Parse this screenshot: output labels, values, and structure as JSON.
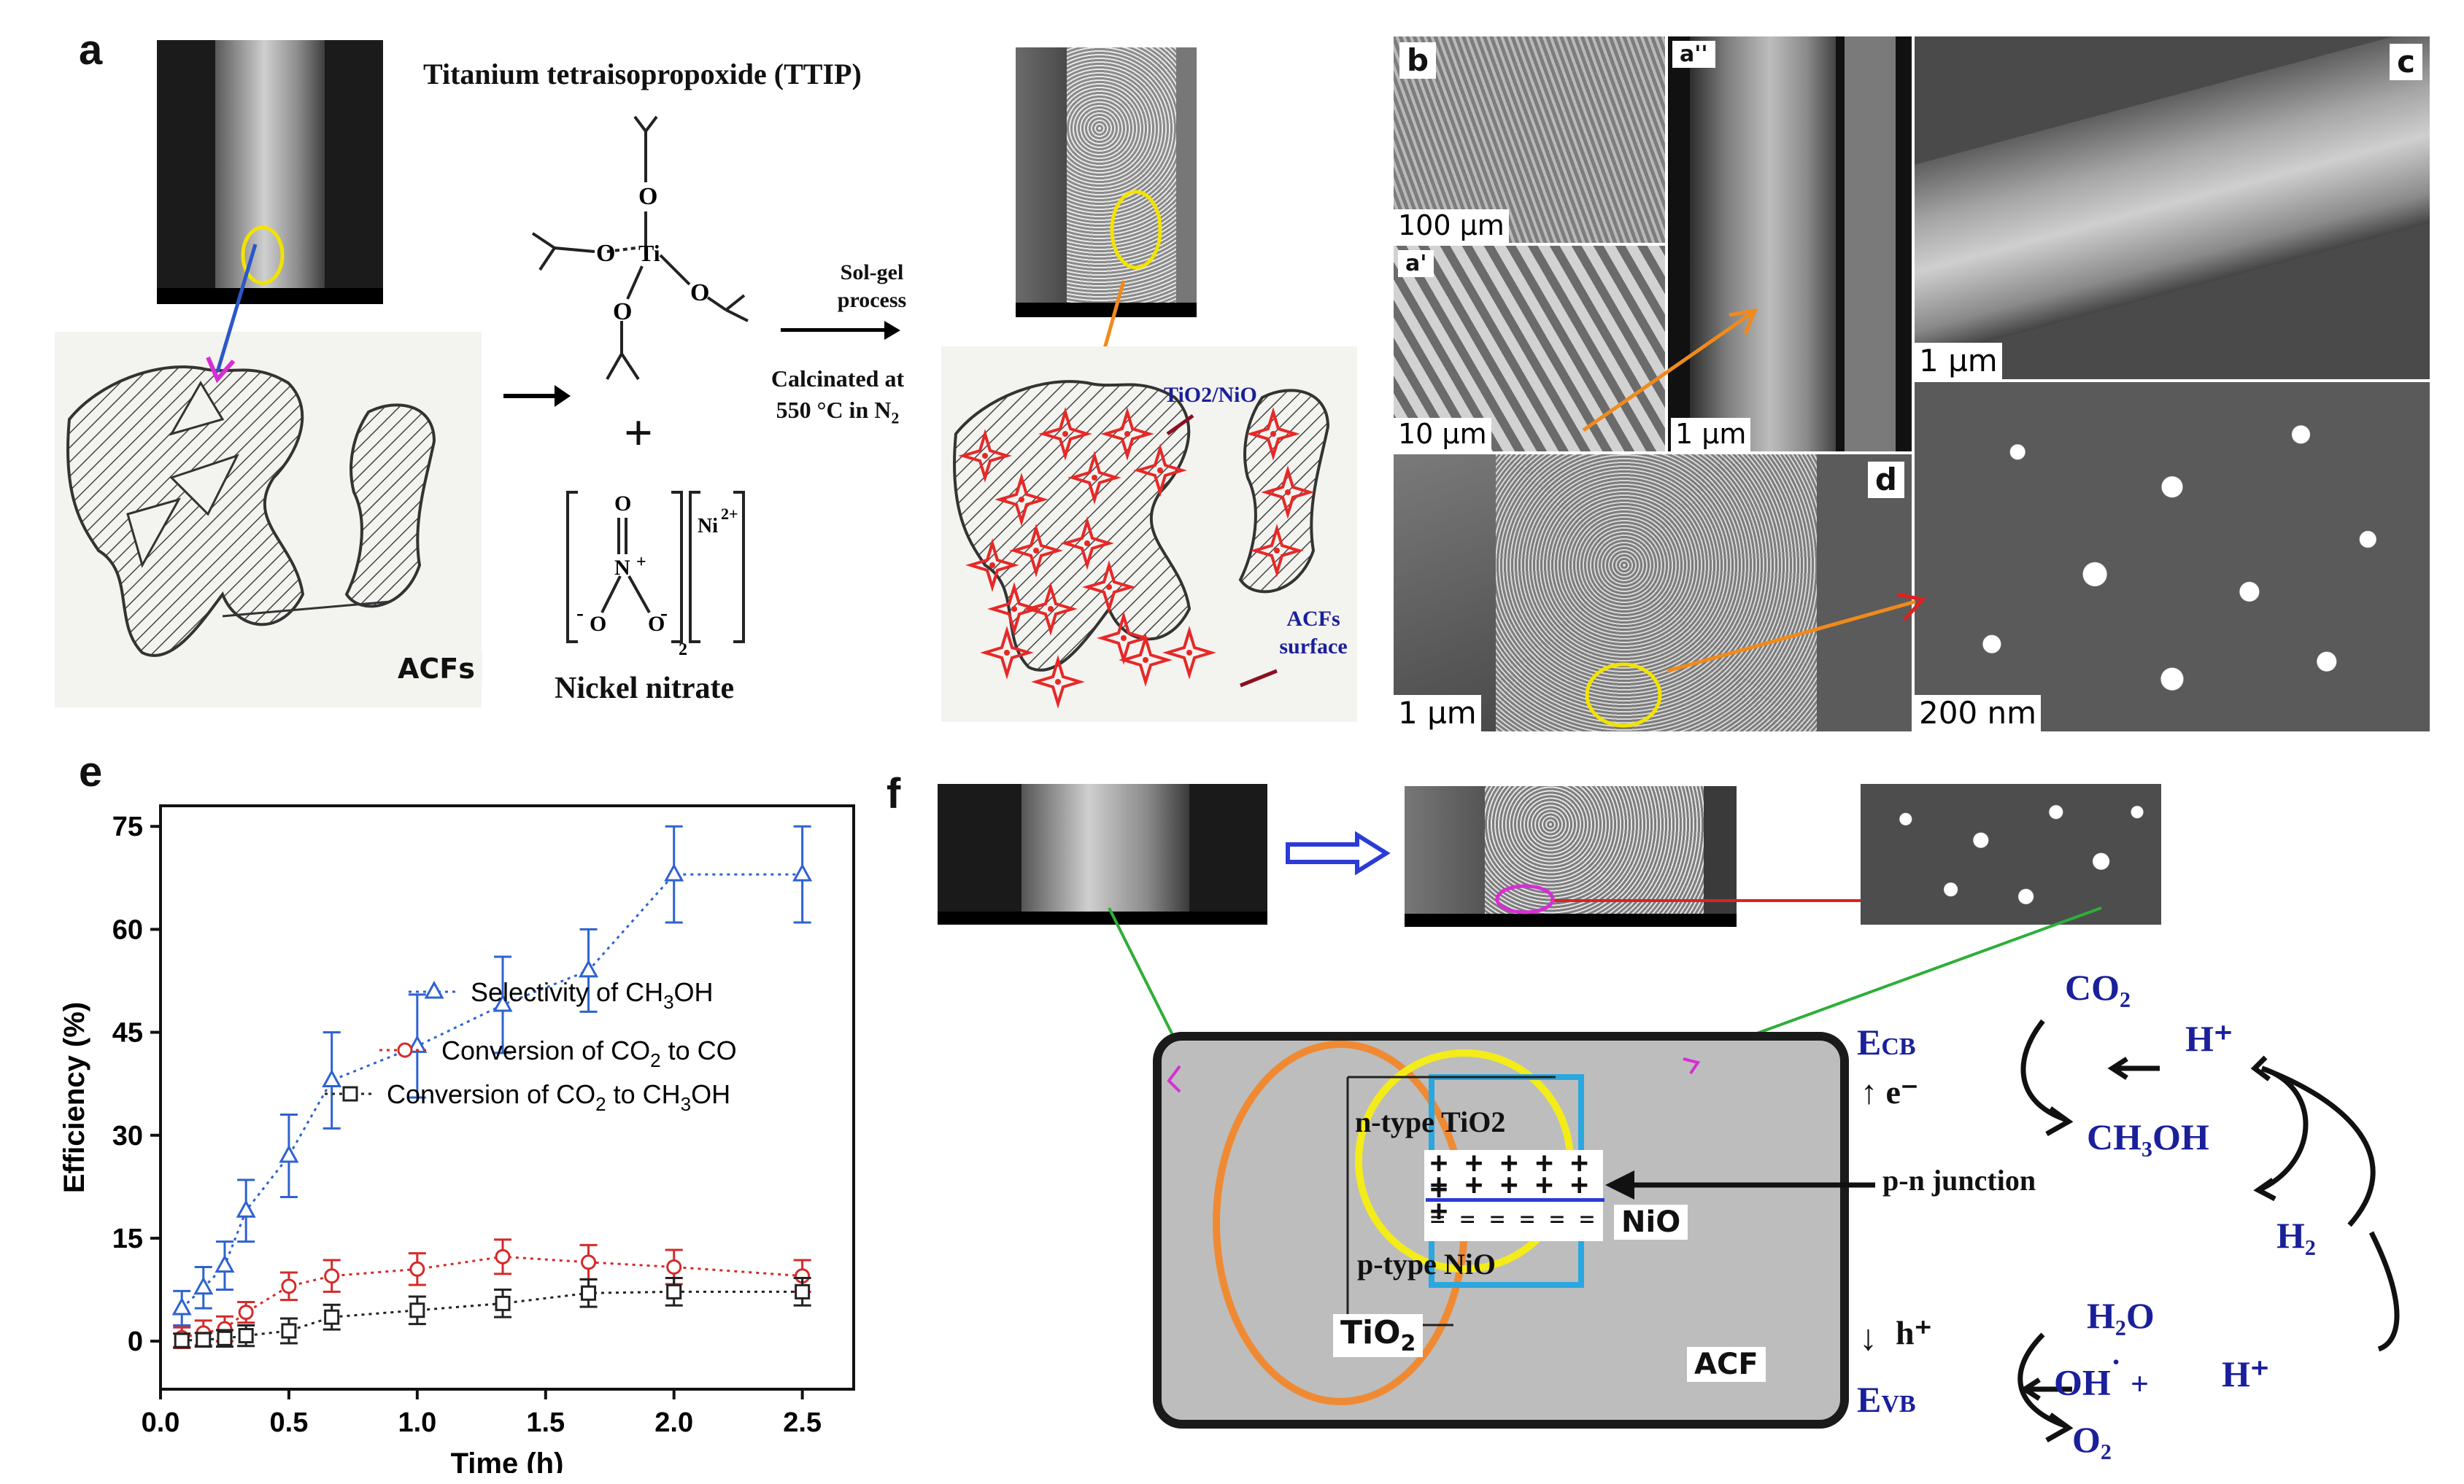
{
  "panels": {
    "a": {
      "letter": "a",
      "ttip_title": "Titanium tetraisopropoxide (TTIP)",
      "ti_atom": "Ti",
      "o_atom": "O",
      "plus": "+",
      "sol_gel": "Sol-gel process",
      "calcinated": "Calcinated at 550 °C in N",
      "calcinated_sub": "2",
      "nickel_nitrate": "Nickel nitrate",
      "ni_ion": "Ni",
      "ni_charge": "2+",
      "n_atom": "N",
      "nitrate_plus": "+",
      "nitrate_minus": "-",
      "bracket_sub": "2",
      "acfs_label": "ACFs",
      "tio2_nio_label": "TiO2/NiO",
      "acfs_surface_label": "ACFs surface"
    },
    "b": {
      "letter": "b",
      "scale": "100 µm"
    },
    "a_prime": {
      "letter": "a'",
      "scale": "10 µm"
    },
    "a_double_prime": {
      "letter": "a''",
      "scale": "1 µm"
    },
    "c": {
      "letter": "c",
      "scale": "1 µm"
    },
    "d": {
      "letter": "d",
      "scale": "1 µm"
    },
    "d_zoom": {
      "scale": "200 nm"
    },
    "e": {
      "letter": "e"
    },
    "f": {
      "letter": "f",
      "n_type": "n-type TiO2",
      "p_type": "p-type NiO",
      "plus_rows": "+ + + + + +",
      "minus_rows": "= = = = = =",
      "nio": "NiO",
      "tio2": "TiO",
      "tio2_sub": "2",
      "acf": "ACF",
      "pn_junction": "p-n junction",
      "ecb": "E",
      "ecb_sub": "CB",
      "evb": "E",
      "evb_sub": "VB",
      "e_minus": "↑ e⁻",
      "h_plus_arrow": "↓",
      "h_plus": "h⁺",
      "co2": "CO₂",
      "h_plus_top": "H⁺",
      "ch3oh": "CH₃OH",
      "h2": "H₂",
      "h2o": "H₂O",
      "oh": "OH",
      "oh_dot": "˙",
      "plus_sign": "+",
      "h_plus_bottom": "H⁺",
      "o2": "O₂"
    }
  },
  "chart_data": {
    "type": "line",
    "xlabel": "Time (h)",
    "ylabel": "Efficiency (%)",
    "xlim": [
      0,
      2.7
    ],
    "ylim": [
      -7,
      78
    ],
    "xticks": [
      "0.0",
      "0.5",
      "1.0",
      "1.5",
      "2.0",
      "2.5"
    ],
    "yticks": [
      "0",
      "15",
      "30",
      "45",
      "60",
      "75"
    ],
    "x": [
      0.083,
      0.167,
      0.25,
      0.333,
      0.5,
      0.667,
      1.0,
      1.333,
      1.667,
      2.0,
      2.5
    ],
    "series": [
      {
        "name": "Selectivity of CH3OH",
        "legend_main": "Selectivity of CH",
        "legend_sub": "3",
        "legend_tail": "OH",
        "color": "#2e62d0",
        "marker": "triangle",
        "values": [
          4.8,
          7.8,
          11,
          19,
          27,
          38,
          43,
          49,
          54,
          68,
          68
        ],
        "errors": [
          2.5,
          3,
          3.5,
          4.5,
          6,
          7,
          7.5,
          7,
          6,
          7,
          7
        ]
      },
      {
        "name": "Conversion of CO2 to CO",
        "legend_main": "Conversion of CO",
        "legend_sub": "2",
        "legend_tail": " to CO",
        "color": "#d42a2a",
        "marker": "circle",
        "values": [
          0.5,
          1.2,
          1.8,
          4.2,
          8,
          9.5,
          10.5,
          12.3,
          11.5,
          10.8,
          9.5
        ],
        "errors": [
          1.5,
          1.8,
          1.8,
          1.5,
          2,
          2.3,
          2.3,
          2.5,
          2.5,
          2.5,
          2.3
        ]
      },
      {
        "name": "Conversion of CO2 to CH3OH",
        "legend_main": "Conversion of CO",
        "legend_sub": "2",
        "legend_tail": " to CH",
        "legend_sub2": "3",
        "legend_tail2": "OH",
        "color": "#222222",
        "marker": "square",
        "values": [
          0.1,
          0.2,
          0.4,
          0.8,
          1.5,
          3.5,
          4.5,
          5.5,
          7,
          7.2,
          7.2
        ],
        "errors": [
          1,
          1,
          1.2,
          1.5,
          1.8,
          1.8,
          2,
          2,
          2,
          2,
          2
        ]
      }
    ]
  }
}
